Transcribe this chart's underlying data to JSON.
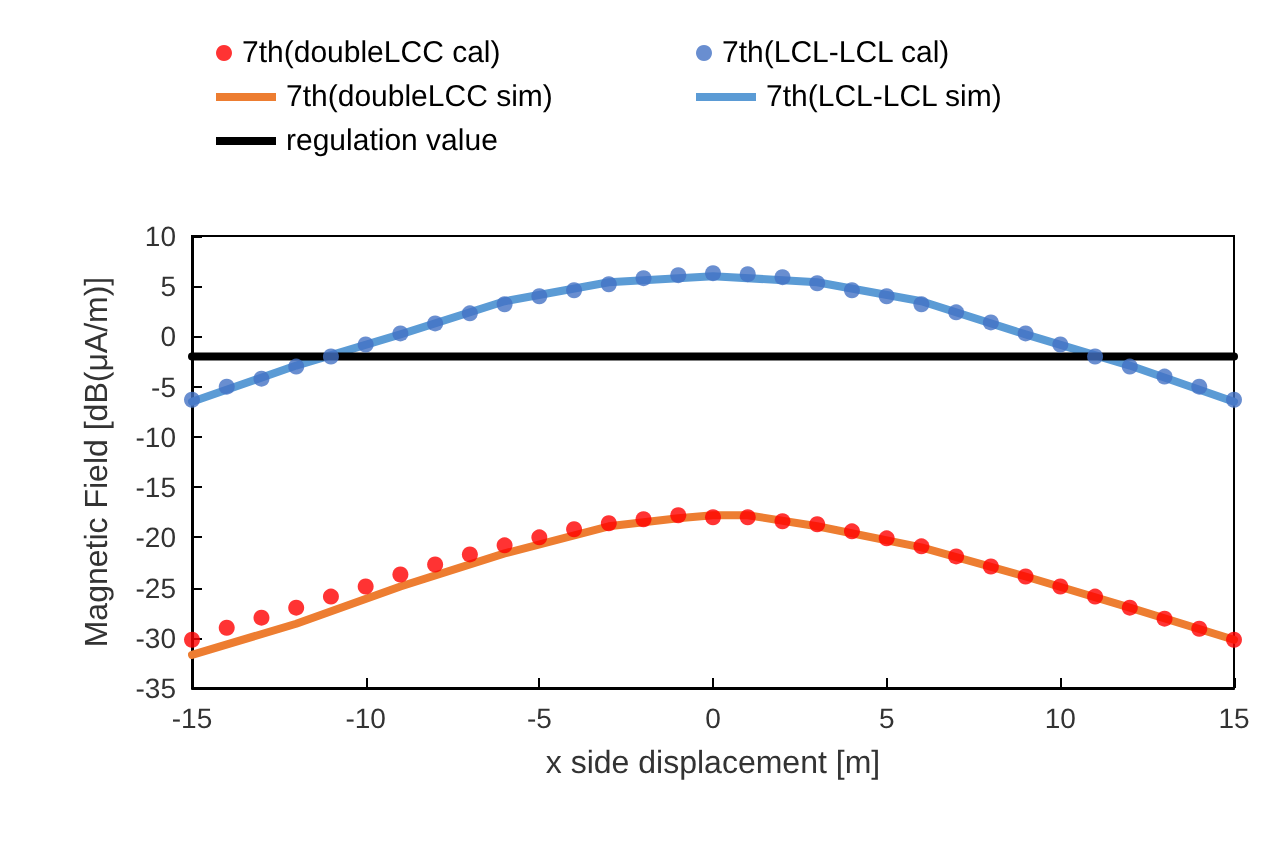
{
  "chart_data": {
    "type": "line",
    "xlabel": "x side displacement [m]",
    "ylabel": "Magnetic Field [dB(μA/m)]",
    "xlim": [
      -15,
      15
    ],
    "xticks": [
      -15,
      -10,
      -5,
      0,
      5,
      10,
      15
    ],
    "ylim": [
      -35,
      10
    ],
    "yticks": [
      -35,
      -30,
      -25,
      -20,
      -15,
      -10,
      -5,
      0,
      5,
      10
    ],
    "grid": false,
    "legend": "top",
    "series": [
      {
        "name": "7th(doubleLCC cal)",
        "type": "scatter",
        "marker": "circle",
        "color": "#ff0000",
        "x": [
          -15,
          -14,
          -13,
          -12,
          -11,
          -10,
          -9,
          -8,
          -7,
          -6,
          -5,
          -4,
          -3,
          -2,
          -1,
          0,
          1,
          2,
          3,
          4,
          5,
          6,
          7,
          8,
          9,
          10,
          11,
          12,
          13,
          14,
          15
        ],
        "values": [
          -30.2,
          -29.0,
          -28.0,
          -27.0,
          -25.9,
          -24.9,
          -23.7,
          -22.7,
          -21.7,
          -20.8,
          -20.0,
          -19.2,
          -18.6,
          -18.2,
          -17.8,
          -18.0,
          -18.0,
          -18.4,
          -18.7,
          -19.4,
          -20.1,
          -20.9,
          -21.9,
          -22.9,
          -23.9,
          -24.9,
          -25.9,
          -27.0,
          -28.1,
          -29.1,
          -30.2
        ]
      },
      {
        "name": "7th(LCL-LCL cal)",
        "type": "scatter",
        "marker": "circle",
        "color": "#4472c4",
        "x": [
          -15,
          -14,
          -13,
          -12,
          -11,
          -10,
          -9,
          -8,
          -7,
          -6,
          -5,
          -4,
          -3,
          -2,
          -1,
          0,
          1,
          2,
          3,
          4,
          5,
          6,
          7,
          8,
          9,
          10,
          11,
          12,
          13,
          14,
          15
        ],
        "values": [
          -6.3,
          -5.0,
          -4.2,
          -3.0,
          -2.0,
          -0.8,
          0.3,
          1.3,
          2.3,
          3.2,
          4.0,
          4.6,
          5.2,
          5.8,
          6.1,
          6.3,
          6.2,
          5.9,
          5.3,
          4.6,
          4.0,
          3.2,
          2.4,
          1.4,
          0.3,
          -0.8,
          -2.0,
          -3.0,
          -4.0,
          -5.0,
          -6.3
        ]
      },
      {
        "name": "7th(doubleLCC sim)",
        "marker": "none",
        "color": "#ed7d31",
        "x": [
          -15,
          -12,
          -9,
          -6,
          -3,
          -1,
          0,
          1,
          3,
          6,
          9,
          12,
          15
        ],
        "values": [
          -31.7,
          -28.6,
          -24.9,
          -21.6,
          -18.9,
          -18.1,
          -17.8,
          -17.8,
          -18.9,
          -21.0,
          -23.9,
          -27.0,
          -30.2
        ]
      },
      {
        "name": "7th(LCL-LCL sim)",
        "marker": "none",
        "color": "#5b9bd5",
        "x": [
          -15,
          -12,
          -9,
          -6,
          -3,
          0,
          3,
          6,
          9,
          12,
          15
        ],
        "values": [
          -6.5,
          -2.9,
          0.2,
          3.5,
          5.4,
          6.0,
          5.4,
          3.5,
          0.2,
          -2.9,
          -6.5
        ]
      },
      {
        "name": "regulation value",
        "marker": "none",
        "color": "#000000",
        "x": [
          -15,
          15
        ],
        "values": [
          -2,
          -2
        ]
      }
    ]
  }
}
